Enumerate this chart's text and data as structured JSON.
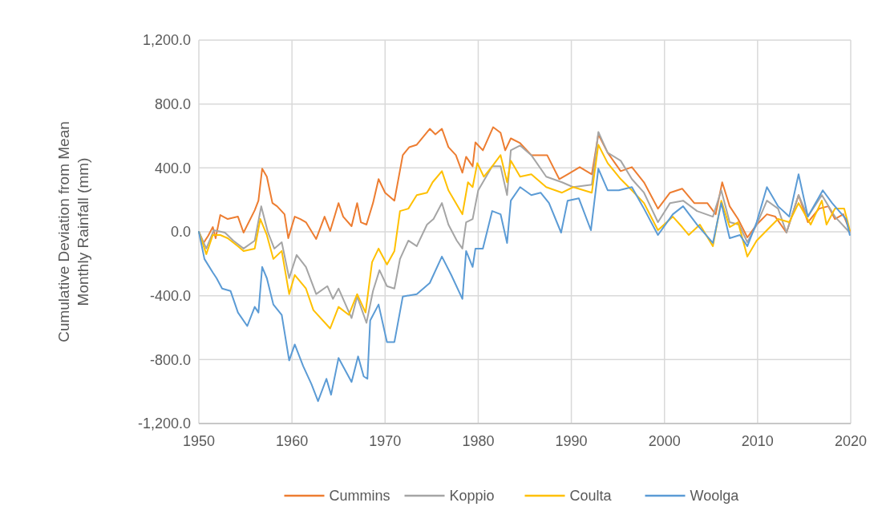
{
  "chart_data": {
    "type": "line",
    "ylabel": "Cumulative Deviation from Mean Monthly Rainfall (mm)",
    "xlim": [
      1950,
      2020
    ],
    "xticks": [
      1950,
      1960,
      1970,
      1980,
      1990,
      2000,
      2010,
      2020
    ],
    "ylim": [
      -1200,
      1200
    ],
    "yticks": [
      {
        "value": -1200,
        "label": "-1,200.0"
      },
      {
        "value": -800,
        "label": "-800.0"
      },
      {
        "value": -400,
        "label": "-400.0"
      },
      {
        "value": 0,
        "label": "0.0"
      },
      {
        "value": 400,
        "label": "400.0"
      },
      {
        "value": 800,
        "label": "800.0"
      },
      {
        "value": 1200,
        "label": "1,200.0"
      }
    ],
    "grid": true,
    "legend": "bottom",
    "marker": "none",
    "line_style": "solid",
    "series": [
      {
        "name": "Cummins",
        "color": "#ed7d31",
        "x": [
          1950,
          1950.5,
          1951,
          1951.5,
          1951.8,
          1952.3,
          1953.1,
          1954.2,
          1954.8,
          1956,
          1956.4,
          1956.8,
          1957.3,
          1957.9,
          1958.4,
          1959.2,
          1959.6,
          1960.3,
          1960.9,
          1961.5,
          1962.6,
          1963.5,
          1964.1,
          1965,
          1965.5,
          1966.4,
          1967,
          1967.4,
          1968,
          1968.7,
          1969.3,
          1970,
          1971,
          1971.9,
          1972.6,
          1973.4,
          1974.8,
          1975.4,
          1976.1,
          1976.8,
          1977.6,
          1978.3,
          1978.7,
          1979.4,
          1979.7,
          1980.5,
          1981.6,
          1982.4,
          1982.9,
          1983.5,
          1984.5,
          1985.7,
          1987.4,
          1988.7,
          1989.6,
          1990.9,
          1992.2,
          1992.9,
          1993.9,
          1995.3,
          1996.5,
          1997.8,
          1999.3,
          2000.6,
          2001.9,
          2003.2,
          2004.6,
          2005.5,
          2006.2,
          2007,
          2007.9,
          2008.9,
          2009.9,
          2011,
          2011.9,
          2013.1,
          2014.4,
          2015.4,
          2016.6,
          2017.6,
          2018.3,
          2019.2,
          2019.9
        ],
        "values": [
          0,
          -70,
          -25,
          30,
          -40,
          105,
          80,
          95,
          -5,
          135,
          195,
          395,
          345,
          180,
          160,
          110,
          -40,
          95,
          80,
          60,
          -45,
          95,
          5,
          180,
          95,
          35,
          180,
          60,
          45,
          180,
          330,
          245,
          195,
          480,
          530,
          545,
          645,
          610,
          645,
          530,
          480,
          370,
          470,
          410,
          560,
          510,
          655,
          620,
          510,
          585,
          555,
          480,
          480,
          330,
          360,
          405,
          360,
          610,
          495,
          380,
          405,
          310,
          145,
          245,
          270,
          180,
          180,
          110,
          310,
          160,
          80,
          -35,
          45,
          110,
          95,
          -5,
          230,
          60,
          145,
          160,
          80,
          110,
          5
        ]
      },
      {
        "name": "Koppio",
        "color": "#a5a5a5",
        "x": [
          1950,
          1950.8,
          1951.6,
          1952.8,
          1953.7,
          1954.8,
          1956,
          1956.7,
          1957.4,
          1958.1,
          1958.9,
          1959.7,
          1960.5,
          1961.5,
          1962.6,
          1963.8,
          1964.4,
          1965,
          1966.4,
          1967,
          1968,
          1968.7,
          1969.4,
          1970.2,
          1971,
          1971.6,
          1972.5,
          1973.4,
          1974.5,
          1975.2,
          1976.1,
          1976.8,
          1977.7,
          1978.3,
          1978.7,
          1979.4,
          1980,
          1981.5,
          1982.4,
          1983.1,
          1983.5,
          1984.5,
          1985.7,
          1987.3,
          1989,
          1990.2,
          1992.2,
          1992.9,
          1993.9,
          1995.3,
          1996.5,
          1997.8,
          1999.3,
          2000.6,
          2002,
          2003.5,
          2005.2,
          2006.1,
          2007,
          2008,
          2008.9,
          2009.9,
          2011,
          2012.2,
          2013.1,
          2014.4,
          2015.4,
          2016.9,
          2018.3,
          2019.9
        ],
        "values": [
          0,
          -105,
          10,
          -5,
          -55,
          -105,
          -55,
          160,
          0,
          -105,
          -65,
          -290,
          -145,
          -220,
          -390,
          -340,
          -420,
          -355,
          -540,
          -405,
          -570,
          -370,
          -240,
          -340,
          -355,
          -170,
          -55,
          -90,
          45,
          80,
          180,
          45,
          -55,
          -105,
          60,
          80,
          260,
          410,
          410,
          230,
          510,
          540,
          480,
          345,
          310,
          280,
          295,
          625,
          495,
          445,
          330,
          245,
          60,
          180,
          195,
          130,
          95,
          260,
          60,
          45,
          -65,
          45,
          195,
          145,
          -5,
          230,
          95,
          230,
          95,
          -5
        ]
      },
      {
        "name": "Coulta",
        "color": "#ffc000",
        "x": [
          1950,
          1950.8,
          1951.5,
          1952.3,
          1953.1,
          1954.2,
          1954.8,
          1956,
          1956.6,
          1957.3,
          1958,
          1958.9,
          1959.7,
          1960.3,
          1961.5,
          1962.3,
          1964.1,
          1965,
          1966.1,
          1967,
          1967.9,
          1968.6,
          1969.3,
          1970.2,
          1971,
          1971.6,
          1972.5,
          1973.4,
          1974.5,
          1975.1,
          1976.1,
          1976.8,
          1978.3,
          1978.9,
          1979.4,
          1979.9,
          1980.6,
          1981.5,
          1982.4,
          1983.1,
          1983.5,
          1984.5,
          1985.7,
          1987.3,
          1989,
          1990.2,
          1992.2,
          1992.9,
          1993.9,
          1995.3,
          1996.5,
          1997.8,
          1999.3,
          2000.9,
          2001.9,
          2002.6,
          2003.8,
          2005.2,
          2006.1,
          2007,
          2007.9,
          2008.9,
          2009.9,
          2011,
          2012.2,
          2013.4,
          2014.4,
          2015.7,
          2016.9,
          2017.4,
          2018.3,
          2019.3,
          2019.9
        ],
        "values": [
          0,
          -140,
          -20,
          -20,
          -40,
          -90,
          -120,
          -105,
          80,
          -20,
          -170,
          -120,
          -390,
          -270,
          -355,
          -490,
          -605,
          -470,
          -520,
          -390,
          -505,
          -190,
          -105,
          -205,
          -120,
          130,
          145,
          230,
          245,
          310,
          380,
          260,
          110,
          310,
          280,
          430,
          345,
          410,
          480,
          310,
          445,
          345,
          360,
          280,
          245,
          280,
          245,
          545,
          430,
          330,
          260,
          180,
          10,
          95,
          30,
          -20,
          45,
          -90,
          195,
          30,
          60,
          -155,
          -55,
          10,
          80,
          60,
          180,
          45,
          195,
          45,
          145,
          145,
          10
        ]
      },
      {
        "name": "Woolga",
        "color": "#5b9bd5",
        "x": [
          1950,
          1950.6,
          1951.5,
          1951.9,
          1952.5,
          1953.4,
          1954.2,
          1955.2,
          1956,
          1956.4,
          1956.8,
          1957.3,
          1958,
          1958.9,
          1959.7,
          1960.3,
          1961.2,
          1962.1,
          1962.8,
          1963.7,
          1964.2,
          1965,
          1966.4,
          1967.1,
          1967.7,
          1968.1,
          1968.4,
          1969.3,
          1970.2,
          1971,
          1971.9,
          1973.4,
          1974.8,
          1976.1,
          1977.1,
          1978.3,
          1978.7,
          1979.4,
          1979.7,
          1980.5,
          1981.5,
          1982.4,
          1983.1,
          1983.5,
          1984.5,
          1985.7,
          1986.7,
          1987.6,
          1988.9,
          1989.6,
          1990.8,
          1992.1,
          1992.9,
          1993.9,
          1995.1,
          1996.5,
          1997.8,
          1999.3,
          2000.9,
          2002,
          2003.5,
          2005.2,
          2006.1,
          2007,
          2008.1,
          2008.9,
          2009.9,
          2011,
          2012.2,
          2013.4,
          2014.4,
          2015.4,
          2017,
          2018,
          2019.5,
          2019.9
        ],
        "values": [
          0,
          -170,
          -255,
          -290,
          -355,
          -370,
          -505,
          -590,
          -470,
          -505,
          -220,
          -290,
          -455,
          -520,
          -805,
          -705,
          -840,
          -955,
          -1060,
          -920,
          -1020,
          -790,
          -940,
          -780,
          -905,
          -920,
          -555,
          -455,
          -690,
          -690,
          -405,
          -390,
          -320,
          -155,
          -270,
          -420,
          -120,
          -220,
          -105,
          -105,
          130,
          110,
          -70,
          195,
          280,
          230,
          245,
          180,
          -5,
          195,
          210,
          10,
          395,
          260,
          260,
          280,
          145,
          -20,
          110,
          160,
          45,
          -70,
          180,
          -40,
          -20,
          -90,
          60,
          280,
          160,
          95,
          360,
          95,
          260,
          180,
          80,
          -20
        ]
      }
    ]
  }
}
